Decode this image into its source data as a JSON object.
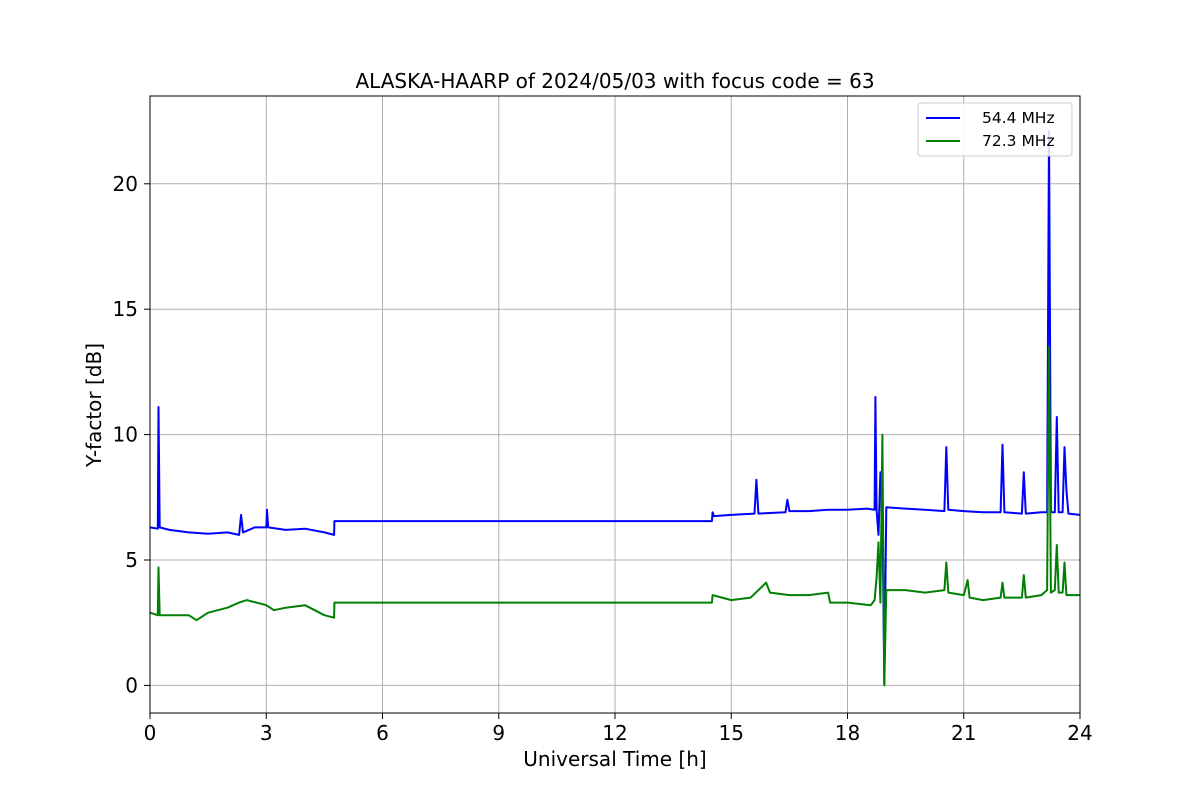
{
  "chart_data": {
    "type": "line",
    "title": "ALASKA-HAARP of 2024/05/03 with focus code = 63",
    "xlabel": "Universal Time [h]",
    "ylabel": "Y-factor [dB]",
    "xlim": [
      0,
      24
    ],
    "ylim": [
      -1.1,
      23.5
    ],
    "xticks": [
      0,
      3,
      6,
      9,
      12,
      15,
      18,
      21,
      24
    ],
    "yticks": [
      0,
      5,
      10,
      15,
      20
    ],
    "grid": true,
    "legend_position": "top-right",
    "series": [
      {
        "name": "54.4 MHz",
        "color": "#0000ff",
        "points": [
          [
            0,
            6.3
          ],
          [
            0.2,
            6.25
          ],
          [
            0.22,
            11.1
          ],
          [
            0.25,
            6.3
          ],
          [
            0.5,
            6.2
          ],
          [
            1.0,
            6.1
          ],
          [
            1.5,
            6.05
          ],
          [
            2.0,
            6.1
          ],
          [
            2.3,
            6.0
          ],
          [
            2.35,
            6.8
          ],
          [
            2.4,
            6.1
          ],
          [
            2.7,
            6.3
          ],
          [
            3.0,
            6.3
          ],
          [
            3.02,
            7.0
          ],
          [
            3.05,
            6.3
          ],
          [
            3.5,
            6.2
          ],
          [
            4.0,
            6.25
          ],
          [
            4.5,
            6.1
          ],
          [
            4.75,
            6.0
          ],
          [
            4.76,
            6.55
          ],
          [
            14.5,
            6.55
          ],
          [
            14.52,
            6.9
          ],
          [
            14.55,
            6.75
          ],
          [
            15.0,
            6.8
          ],
          [
            15.6,
            6.85
          ],
          [
            15.65,
            8.2
          ],
          [
            15.7,
            6.85
          ],
          [
            16.4,
            6.9
          ],
          [
            16.45,
            7.4
          ],
          [
            16.5,
            6.95
          ],
          [
            17.0,
            6.95
          ],
          [
            17.5,
            7.0
          ],
          [
            18.0,
            7.0
          ],
          [
            18.5,
            7.05
          ],
          [
            18.7,
            7.0
          ],
          [
            18.72,
            11.5
          ],
          [
            18.75,
            7.0
          ],
          [
            18.8,
            6.0
          ],
          [
            18.85,
            8.5
          ],
          [
            18.9,
            7.0
          ],
          [
            18.95,
            0.05
          ],
          [
            19.0,
            7.1
          ],
          [
            19.5,
            7.05
          ],
          [
            20.0,
            7.0
          ],
          [
            20.5,
            6.95
          ],
          [
            20.55,
            9.5
          ],
          [
            20.6,
            7.0
          ],
          [
            21.0,
            6.95
          ],
          [
            21.5,
            6.9
          ],
          [
            21.95,
            6.9
          ],
          [
            22.0,
            9.6
          ],
          [
            22.05,
            6.9
          ],
          [
            22.5,
            6.85
          ],
          [
            22.55,
            8.5
          ],
          [
            22.6,
            6.85
          ],
          [
            23.0,
            6.9
          ],
          [
            23.15,
            6.9
          ],
          [
            23.2,
            22.1
          ],
          [
            23.25,
            6.9
          ],
          [
            23.35,
            6.9
          ],
          [
            23.4,
            10.7
          ],
          [
            23.45,
            6.9
          ],
          [
            23.55,
            6.9
          ],
          [
            23.6,
            9.5
          ],
          [
            23.65,
            7.8
          ],
          [
            23.7,
            6.85
          ],
          [
            24.0,
            6.8
          ]
        ]
      },
      {
        "name": "72.3 MHz",
        "color": "#008000",
        "points": [
          [
            0,
            2.9
          ],
          [
            0.2,
            2.8
          ],
          [
            0.22,
            4.7
          ],
          [
            0.25,
            2.8
          ],
          [
            0.5,
            2.8
          ],
          [
            1.0,
            2.8
          ],
          [
            1.2,
            2.6
          ],
          [
            1.5,
            2.9
          ],
          [
            2.0,
            3.1
          ],
          [
            2.3,
            3.3
          ],
          [
            2.5,
            3.4
          ],
          [
            3.0,
            3.2
          ],
          [
            3.2,
            3.0
          ],
          [
            3.5,
            3.1
          ],
          [
            4.0,
            3.2
          ],
          [
            4.5,
            2.8
          ],
          [
            4.75,
            2.7
          ],
          [
            4.76,
            3.3
          ],
          [
            14.5,
            3.3
          ],
          [
            14.52,
            3.6
          ],
          [
            15.0,
            3.4
          ],
          [
            15.5,
            3.5
          ],
          [
            15.9,
            4.1
          ],
          [
            16.0,
            3.7
          ],
          [
            16.5,
            3.6
          ],
          [
            17.0,
            3.6
          ],
          [
            17.5,
            3.7
          ],
          [
            17.55,
            3.3
          ],
          [
            18.0,
            3.3
          ],
          [
            18.6,
            3.2
          ],
          [
            18.7,
            3.4
          ],
          [
            18.75,
            4.3
          ],
          [
            18.8,
            5.7
          ],
          [
            18.85,
            3.3
          ],
          [
            18.9,
            10.0
          ],
          [
            18.95,
            0.0
          ],
          [
            19.0,
            3.8
          ],
          [
            19.5,
            3.8
          ],
          [
            20.0,
            3.7
          ],
          [
            20.5,
            3.8
          ],
          [
            20.55,
            4.9
          ],
          [
            20.6,
            3.7
          ],
          [
            21.0,
            3.6
          ],
          [
            21.1,
            4.2
          ],
          [
            21.15,
            3.5
          ],
          [
            21.5,
            3.4
          ],
          [
            21.95,
            3.5
          ],
          [
            22.0,
            4.1
          ],
          [
            22.05,
            3.5
          ],
          [
            22.5,
            3.5
          ],
          [
            22.55,
            4.4
          ],
          [
            22.6,
            3.5
          ],
          [
            23.0,
            3.6
          ],
          [
            23.15,
            3.8
          ],
          [
            23.2,
            13.5
          ],
          [
            23.25,
            3.7
          ],
          [
            23.35,
            3.8
          ],
          [
            23.4,
            5.6
          ],
          [
            23.45,
            3.7
          ],
          [
            23.55,
            3.7
          ],
          [
            23.6,
            4.9
          ],
          [
            23.65,
            3.6
          ],
          [
            24.0,
            3.6
          ]
        ]
      }
    ]
  }
}
